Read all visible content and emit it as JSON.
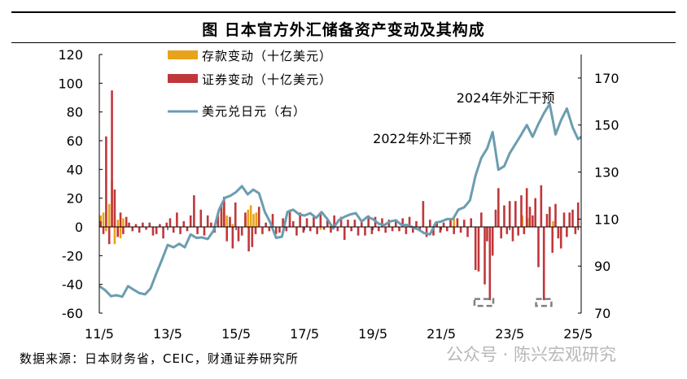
{
  "title": "图 日本官方外汇储备资产变动及其构成",
  "source": "数据来源：日本财务省，CEIC，财通证券研究所",
  "watermark": "公众号 · 陈兴宏观研究",
  "colors": {
    "deposits": "#E8A31B",
    "securities": "#C0373B",
    "usdjpy": "#6B9DB0",
    "box": "#808080"
  },
  "chart_data": {
    "type": "bar",
    "left_axis": {
      "min": -60,
      "max": 120,
      "ticks": [
        "120",
        "100",
        "80",
        "60",
        "40",
        "20",
        "0",
        "-20",
        "-40",
        "-60"
      ]
    },
    "right_axis": {
      "min": 70,
      "max": 180,
      "ticks": [
        "170",
        "150",
        "130",
        "110",
        "90",
        "70"
      ]
    },
    "x_axis": {
      "start": 2011.33,
      "end": 2025.42,
      "tick_labels": [
        "11/5",
        "13/5",
        "15/5",
        "17/5",
        "19/5",
        "21/5",
        "23/5",
        "25/5"
      ],
      "tick_values": [
        2011.33,
        2013.33,
        2015.33,
        2017.33,
        2019.33,
        2021.33,
        2023.33,
        2025.33
      ]
    },
    "legend": [
      {
        "key": "deposits",
        "label": "存款变动（十亿美元）"
      },
      {
        "key": "securities",
        "label": "证券变动（十亿美元）"
      },
      {
        "key": "usdjpy",
        "label": "美元兑日元（右）"
      }
    ],
    "annotations": [
      {
        "text": "2022年外汇干预",
        "x_start": 2022.3,
        "x_end": 2022.85,
        "ymin": -55,
        "ymax": 76
      },
      {
        "text": "2024年外汇干预",
        "x_start": 2024.1,
        "x_end": 2024.55,
        "ymin": -55,
        "ymax": 76
      }
    ],
    "series_deposits": [
      [
        2011.37,
        8
      ],
      [
        2011.45,
        10
      ],
      [
        2011.53,
        -3
      ],
      [
        2011.62,
        16
      ],
      [
        2011.7,
        32
      ],
      [
        2011.78,
        -12
      ],
      [
        2011.87,
        5
      ],
      [
        2011.95,
        -8
      ],
      [
        2012.03,
        6
      ],
      [
        2012.12,
        2
      ],
      [
        2014.9,
        10
      ],
      [
        2014.98,
        14
      ],
      [
        2015.06,
        8
      ],
      [
        2015.15,
        5
      ],
      [
        2015.23,
        2
      ],
      [
        2015.6,
        8
      ],
      [
        2015.68,
        12
      ],
      [
        2015.76,
        15
      ],
      [
        2015.84,
        9
      ],
      [
        2015.92,
        10
      ],
      [
        2016.0,
        5
      ],
      [
        2017.6,
        3
      ],
      [
        2017.8,
        -2
      ],
      [
        2018.1,
        2
      ],
      [
        2021.6,
        3
      ],
      [
        2021.7,
        6
      ],
      [
        2023.7,
        8
      ],
      [
        2023.85,
        6
      ],
      [
        2024.6,
        4
      ]
    ],
    "series_securities": [
      [
        2011.37,
        4
      ],
      [
        2011.45,
        -5
      ],
      [
        2011.53,
        63
      ],
      [
        2011.62,
        -12
      ],
      [
        2011.7,
        95
      ],
      [
        2011.78,
        26
      ],
      [
        2011.87,
        -7
      ],
      [
        2011.95,
        10
      ],
      [
        2012.03,
        -5
      ],
      [
        2012.12,
        7
      ],
      [
        2012.2,
        3
      ],
      [
        2012.3,
        -3
      ],
      [
        2012.4,
        2
      ],
      [
        2012.5,
        -4
      ],
      [
        2012.6,
        3
      ],
      [
        2012.7,
        -2
      ],
      [
        2012.8,
        3
      ],
      [
        2012.9,
        -6
      ],
      [
        2013.0,
        -5
      ],
      [
        2013.1,
        2
      ],
      [
        2013.2,
        -8
      ],
      [
        2013.3,
        3
      ],
      [
        2013.4,
        6
      ],
      [
        2013.5,
        -4
      ],
      [
        2013.6,
        10
      ],
      [
        2013.7,
        -5
      ],
      [
        2013.8,
        4
      ],
      [
        2013.9,
        -3
      ],
      [
        2014.0,
        8
      ],
      [
        2014.1,
        22
      ],
      [
        2014.2,
        -5
      ],
      [
        2014.3,
        12
      ],
      [
        2014.4,
        -6
      ],
      [
        2014.5,
        8
      ],
      [
        2014.6,
        3
      ],
      [
        2014.7,
        -4
      ],
      [
        2014.8,
        10
      ],
      [
        2014.9,
        16
      ],
      [
        2014.98,
        21
      ],
      [
        2015.06,
        -10
      ],
      [
        2015.15,
        7
      ],
      [
        2015.23,
        -15
      ],
      [
        2015.31,
        17
      ],
      [
        2015.4,
        -10
      ],
      [
        2015.5,
        -6
      ],
      [
        2015.6,
        10
      ],
      [
        2015.7,
        -17
      ],
      [
        2015.8,
        -14
      ],
      [
        2015.9,
        -5
      ],
      [
        2016.0,
        14
      ],
      [
        2016.1,
        -5
      ],
      [
        2016.2,
        3
      ],
      [
        2016.3,
        -3
      ],
      [
        2016.4,
        9
      ],
      [
        2016.5,
        -5
      ],
      [
        2016.6,
        -4
      ],
      [
        2016.7,
        6
      ],
      [
        2016.8,
        -3
      ],
      [
        2016.9,
        12
      ],
      [
        2017.0,
        4
      ],
      [
        2017.1,
        -6
      ],
      [
        2017.2,
        10
      ],
      [
        2017.3,
        -4
      ],
      [
        2017.4,
        6
      ],
      [
        2017.5,
        -3
      ],
      [
        2017.6,
        7
      ],
      [
        2017.7,
        -5
      ],
      [
        2017.8,
        9
      ],
      [
        2017.9,
        -2
      ],
      [
        2018.0,
        5
      ],
      [
        2018.1,
        -4
      ],
      [
        2018.2,
        8
      ],
      [
        2018.3,
        -3
      ],
      [
        2018.4,
        7
      ],
      [
        2018.5,
        -9
      ],
      [
        2018.6,
        5
      ],
      [
        2018.7,
        -3
      ],
      [
        2018.8,
        5
      ],
      [
        2018.9,
        -6
      ],
      [
        2019.0,
        4
      ],
      [
        2019.1,
        -6
      ],
      [
        2019.2,
        8
      ],
      [
        2019.3,
        -5
      ],
      [
        2019.4,
        7
      ],
      [
        2019.5,
        -3
      ],
      [
        2019.6,
        6
      ],
      [
        2019.7,
        -4
      ],
      [
        2019.8,
        5
      ],
      [
        2019.9,
        -3
      ],
      [
        2020.0,
        4
      ],
      [
        2020.1,
        -3
      ],
      [
        2020.2,
        6
      ],
      [
        2020.3,
        -5
      ],
      [
        2020.4,
        7
      ],
      [
        2020.5,
        -4
      ],
      [
        2020.6,
        4
      ],
      [
        2020.7,
        -3
      ],
      [
        2020.8,
        18
      ],
      [
        2020.9,
        -7
      ],
      [
        2021.0,
        5
      ],
      [
        2021.1,
        -6
      ],
      [
        2021.2,
        4
      ],
      [
        2021.3,
        -4
      ],
      [
        2021.4,
        3
      ],
      [
        2021.5,
        -3
      ],
      [
        2021.6,
        5
      ],
      [
        2021.7,
        -5
      ],
      [
        2021.8,
        6
      ],
      [
        2021.9,
        -4
      ],
      [
        2022.0,
        5
      ],
      [
        2022.1,
        -7
      ],
      [
        2022.2,
        6
      ],
      [
        2022.33,
        -30
      ],
      [
        2022.42,
        -31
      ],
      [
        2022.5,
        10
      ],
      [
        2022.6,
        -40
      ],
      [
        2022.67,
        -10
      ],
      [
        2022.75,
        -51
      ],
      [
        2022.83,
        -20
      ],
      [
        2022.92,
        12
      ],
      [
        2023.0,
        27
      ],
      [
        2023.08,
        -8
      ],
      [
        2023.17,
        15
      ],
      [
        2023.25,
        -5
      ],
      [
        2023.33,
        18
      ],
      [
        2023.42,
        -10
      ],
      [
        2023.5,
        18
      ],
      [
        2023.58,
        -6
      ],
      [
        2023.67,
        22
      ],
      [
        2023.75,
        -5
      ],
      [
        2023.83,
        27
      ],
      [
        2023.92,
        14
      ],
      [
        2024.0,
        8
      ],
      [
        2024.08,
        20
      ],
      [
        2024.17,
        -28
      ],
      [
        2024.25,
        29
      ],
      [
        2024.33,
        -51
      ],
      [
        2024.42,
        9
      ],
      [
        2024.5,
        14
      ],
      [
        2024.58,
        -18
      ],
      [
        2024.67,
        16
      ],
      [
        2024.75,
        -8
      ],
      [
        2024.83,
        -15
      ],
      [
        2024.92,
        10
      ],
      [
        2025.0,
        -7
      ],
      [
        2025.08,
        10
      ],
      [
        2025.17,
        12
      ],
      [
        2025.25,
        -5
      ],
      [
        2025.33,
        17
      ]
    ],
    "series_usdjpy": [
      [
        2011.33,
        81.5
      ],
      [
        2011.5,
        79.8
      ],
      [
        2011.67,
        77.2
      ],
      [
        2011.83,
        77.6
      ],
      [
        2012.0,
        77.0
      ],
      [
        2012.17,
        81.5
      ],
      [
        2012.33,
        80.0
      ],
      [
        2012.5,
        78.5
      ],
      [
        2012.67,
        78.0
      ],
      [
        2012.83,
        80.5
      ],
      [
        2013.0,
        87.0
      ],
      [
        2013.17,
        93.0
      ],
      [
        2013.33,
        99.0
      ],
      [
        2013.5,
        98.0
      ],
      [
        2013.67,
        99.5
      ],
      [
        2013.83,
        98.0
      ],
      [
        2014.0,
        103.5
      ],
      [
        2014.17,
        102.0
      ],
      [
        2014.33,
        102.2
      ],
      [
        2014.5,
        101.5
      ],
      [
        2014.67,
        105.0
      ],
      [
        2014.83,
        114.0
      ],
      [
        2015.0,
        119.0
      ],
      [
        2015.17,
        120.0
      ],
      [
        2015.33,
        121.5
      ],
      [
        2015.5,
        124.0
      ],
      [
        2015.67,
        120.5
      ],
      [
        2015.83,
        122.5
      ],
      [
        2016.0,
        121.0
      ],
      [
        2016.17,
        113.0
      ],
      [
        2016.33,
        108.5
      ],
      [
        2016.5,
        102.0
      ],
      [
        2016.67,
        102.5
      ],
      [
        2016.83,
        113.0
      ],
      [
        2017.0,
        114.0
      ],
      [
        2017.17,
        112.0
      ],
      [
        2017.33,
        111.5
      ],
      [
        2017.5,
        112.5
      ],
      [
        2017.67,
        110.5
      ],
      [
        2017.83,
        113.0
      ],
      [
        2018.0,
        110.0
      ],
      [
        2018.17,
        106.0
      ],
      [
        2018.33,
        109.5
      ],
      [
        2018.5,
        111.0
      ],
      [
        2018.67,
        112.0
      ],
      [
        2018.83,
        112.5
      ],
      [
        2019.0,
        109.0
      ],
      [
        2019.17,
        111.0
      ],
      [
        2019.33,
        110.0
      ],
      [
        2019.5,
        108.0
      ],
      [
        2019.67,
        107.5
      ],
      [
        2019.83,
        109.0
      ],
      [
        2020.0,
        109.5
      ],
      [
        2020.17,
        107.5
      ],
      [
        2020.33,
        107.5
      ],
      [
        2020.5,
        106.5
      ],
      [
        2020.67,
        105.5
      ],
      [
        2020.83,
        104.0
      ],
      [
        2021.0,
        103.5
      ],
      [
        2021.17,
        108.5
      ],
      [
        2021.33,
        109.0
      ],
      [
        2021.5,
        110.0
      ],
      [
        2021.67,
        110.0
      ],
      [
        2021.83,
        114.0
      ],
      [
        2022.0,
        115.0
      ],
      [
        2022.17,
        118.0
      ],
      [
        2022.33,
        128.5
      ],
      [
        2022.5,
        136.0
      ],
      [
        2022.67,
        140.0
      ],
      [
        2022.83,
        147.0
      ],
      [
        2023.0,
        131.0
      ],
      [
        2023.17,
        132.5
      ],
      [
        2023.33,
        138.0
      ],
      [
        2023.5,
        142.0
      ],
      [
        2023.67,
        146.0
      ],
      [
        2023.83,
        150.0
      ],
      [
        2024.0,
        145.0
      ],
      [
        2024.17,
        150.5
      ],
      [
        2024.33,
        155.0
      ],
      [
        2024.5,
        159.0
      ],
      [
        2024.67,
        146.0
      ],
      [
        2024.83,
        152.0
      ],
      [
        2025.0,
        157.0
      ],
      [
        2025.17,
        149.0
      ],
      [
        2025.33,
        144.0
      ],
      [
        2025.42,
        145.0
      ]
    ]
  }
}
